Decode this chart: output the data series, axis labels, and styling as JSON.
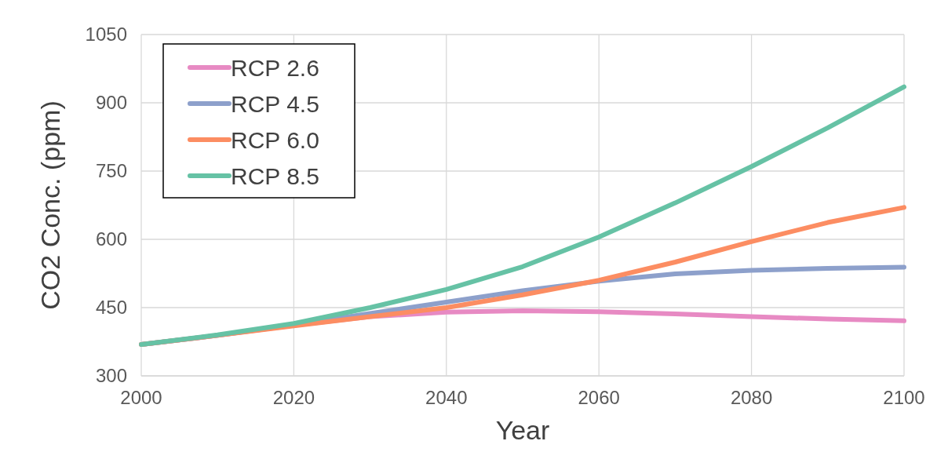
{
  "chart_data": {
    "type": "line",
    "xlabel": "Year",
    "ylabel": "CO2 Conc. (ppm)",
    "x": [
      2000,
      2010,
      2020,
      2030,
      2040,
      2050,
      2060,
      2070,
      2080,
      2090,
      2100
    ],
    "series": [
      {
        "name": "RCP 2.6",
        "color": "#e78ac3",
        "values": [
          369,
          389,
          411,
          430,
          440,
          443,
          441,
          436,
          430,
          425,
          421
        ]
      },
      {
        "name": "RCP 4.5",
        "color": "#8da0cb",
        "values": [
          369,
          389,
          412,
          437,
          462,
          487,
          508,
          524,
          532,
          536,
          539
        ]
      },
      {
        "name": "RCP 6.0",
        "color": "#fc8d62",
        "values": [
          369,
          389,
          410,
          430,
          450,
          478,
          510,
          550,
          595,
          637,
          670
        ]
      },
      {
        "name": "RCP 8.5",
        "color": "#66c2a5",
        "values": [
          369,
          390,
          415,
          450,
          490,
          540,
          605,
          680,
          760,
          845,
          935
        ]
      }
    ],
    "xlim": [
      2000,
      2100
    ],
    "xticks": [
      2000,
      2020,
      2040,
      2060,
      2080,
      2100
    ],
    "ylim": [
      300,
      1050
    ],
    "yticks": [
      300,
      450,
      600,
      750,
      900,
      1050
    ],
    "grid": true,
    "legend": "top left",
    "marker": "none",
    "line_style": "solid"
  }
}
